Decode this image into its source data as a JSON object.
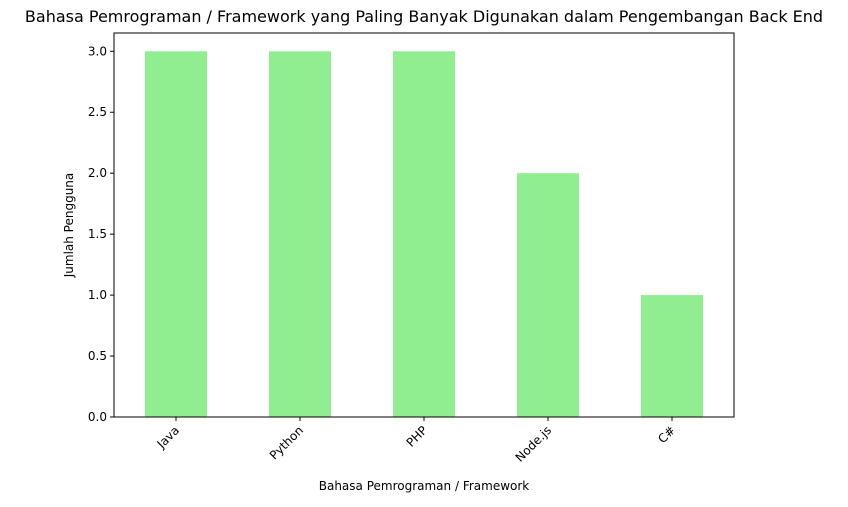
{
  "chart_data": {
    "type": "bar",
    "title": "Bahasa Pemrograman / Framework yang Paling Banyak Digunakan dalam Pengembangan Back End",
    "xlabel": "Bahasa Pemrograman / Framework",
    "ylabel": "Jumlah Pengguna",
    "categories": [
      "Java",
      "Python",
      "PHP",
      "Node.js",
      "C#"
    ],
    "values": [
      3,
      3,
      3,
      2,
      1
    ],
    "ylim": [
      0,
      3.15
    ],
    "yticks": [
      "0.0",
      "0.5",
      "1.0",
      "1.5",
      "2.0",
      "2.5",
      "3.0"
    ],
    "bar_color": "#90ee90",
    "grid": false,
    "legend": "none"
  }
}
